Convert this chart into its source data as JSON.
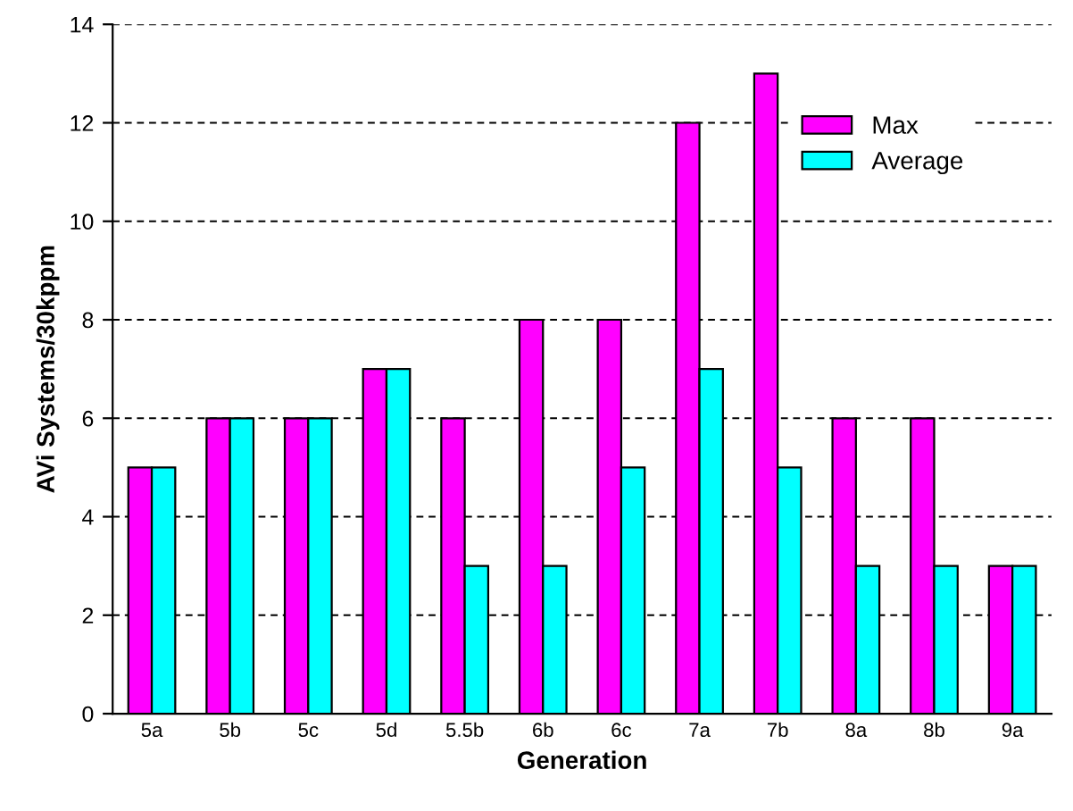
{
  "chart_data": {
    "type": "bar",
    "xlabel": "Generation",
    "ylabel": "AVi Systems/30kppm",
    "categories": [
      "5a",
      "5b",
      "5c",
      "5d",
      "5.5b",
      "6b",
      "6c",
      "7a",
      "7b",
      "8a",
      "8b",
      "9a"
    ],
    "series": [
      {
        "name": "Max",
        "color": "#ff00ff",
        "values": [
          5,
          6,
          6,
          7,
          6,
          8,
          8,
          12,
          13,
          6,
          6,
          3
        ]
      },
      {
        "name": "Average",
        "color": "#00ffff",
        "values": [
          5,
          6,
          6,
          7,
          3,
          3,
          5,
          7,
          5,
          3,
          3,
          3
        ]
      }
    ],
    "ylim": [
      0,
      14
    ],
    "yticks": [
      0,
      2,
      4,
      6,
      8,
      10,
      12,
      14
    ],
    "grid": "y",
    "legend": "top right"
  }
}
